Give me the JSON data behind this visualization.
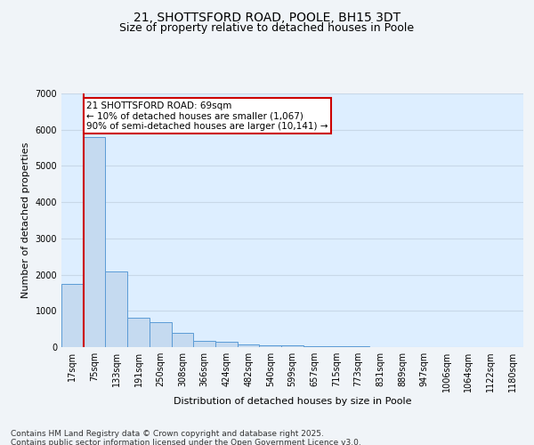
{
  "title": "21, SHOTTSFORD ROAD, POOLE, BH15 3DT",
  "subtitle": "Size of property relative to detached houses in Poole",
  "xlabel": "Distribution of detached houses by size in Poole",
  "ylabel": "Number of detached properties",
  "categories": [
    "17sqm",
    "75sqm",
    "133sqm",
    "191sqm",
    "250sqm",
    "308sqm",
    "366sqm",
    "424sqm",
    "482sqm",
    "540sqm",
    "599sqm",
    "657sqm",
    "715sqm",
    "773sqm",
    "831sqm",
    "889sqm",
    "947sqm",
    "1006sqm",
    "1064sqm",
    "1122sqm",
    "1180sqm"
  ],
  "values": [
    1750,
    5800,
    2100,
    800,
    700,
    400,
    180,
    150,
    80,
    60,
    40,
    30,
    20,
    15,
    10,
    8,
    5,
    4,
    3,
    2,
    2
  ],
  "bar_color": "#c5daf0",
  "bar_edge_color": "#5b9bd5",
  "bg_color": "#ddeeff",
  "grid_color": "#c8d8e8",
  "annotation_box_color": "#ffffff",
  "annotation_border_color": "#cc0000",
  "vline_color": "#cc0000",
  "vline_x_index": 0.5,
  "annotation_text": "21 SHOTTSFORD ROAD: 69sqm\n← 10% of detached houses are smaller (1,067)\n90% of semi-detached houses are larger (10,141) →",
  "footer_text": "Contains HM Land Registry data © Crown copyright and database right 2025.\nContains public sector information licensed under the Open Government Licence v3.0.",
  "ylim": [
    0,
    7000
  ],
  "yticks": [
    0,
    1000,
    2000,
    3000,
    4000,
    5000,
    6000,
    7000
  ],
  "title_fontsize": 10,
  "subtitle_fontsize": 9,
  "label_fontsize": 8,
  "tick_fontsize": 7,
  "annotation_fontsize": 7.5,
  "footer_fontsize": 6.5
}
